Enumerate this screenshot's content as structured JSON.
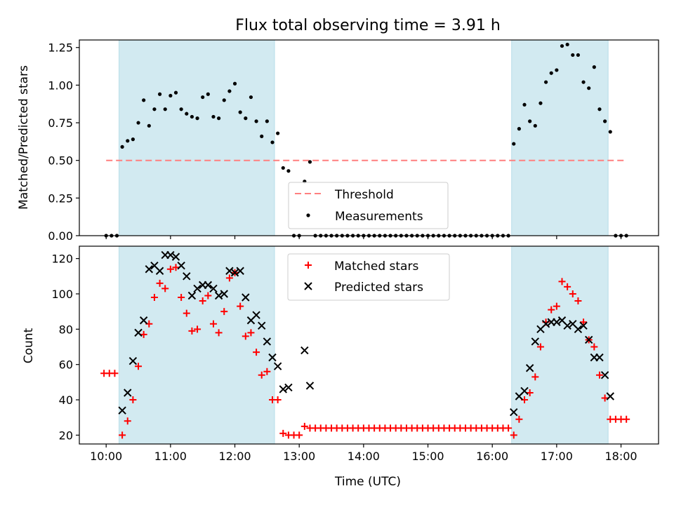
{
  "title": "Flux total observing time = 3.91 h",
  "colors": {
    "span": "#add8e6",
    "threshold": "#ff7f7f",
    "measurement": "#000000",
    "matched": "#ff0000",
    "predicted": "#000000"
  },
  "chart_data": [
    {
      "type": "scatter",
      "ylabel": "Matched/Predicted stars",
      "ylim": [
        0,
        1.3
      ],
      "yticks": [
        "0.00",
        "0.25",
        "0.50",
        "0.75",
        "1.00",
        "1.25"
      ],
      "grid": false,
      "legend_position": "lower center",
      "observing_windows": [
        [
          "10:12",
          "12:37"
        ],
        [
          "16:18",
          "17:48"
        ]
      ],
      "threshold": {
        "name": "Threshold",
        "value": 0.5,
        "x_range": [
          "10:00",
          "18:05"
        ]
      },
      "series": [
        {
          "name": "Measurements",
          "points": [
            [
              "10:00",
              0
            ],
            [
              "10:05",
              0
            ],
            [
              "10:10",
              0
            ],
            [
              "10:15",
              0.59
            ],
            [
              "10:20",
              0.63
            ],
            [
              "10:25",
              0.64
            ],
            [
              "10:30",
              0.75
            ],
            [
              "10:35",
              0.9
            ],
            [
              "10:40",
              0.73
            ],
            [
              "10:45",
              0.84
            ],
            [
              "10:50",
              0.94
            ],
            [
              "10:55",
              0.84
            ],
            [
              "11:00",
              0.93
            ],
            [
              "11:05",
              0.95
            ],
            [
              "11:10",
              0.84
            ],
            [
              "11:15",
              0.81
            ],
            [
              "11:20",
              0.79
            ],
            [
              "11:25",
              0.78
            ],
            [
              "11:30",
              0.92
            ],
            [
              "11:35",
              0.94
            ],
            [
              "11:40",
              0.79
            ],
            [
              "11:45",
              0.78
            ],
            [
              "11:50",
              0.9
            ],
            [
              "11:55",
              0.96
            ],
            [
              "12:00",
              1.01
            ],
            [
              "12:05",
              0.82
            ],
            [
              "12:10",
              0.78
            ],
            [
              "12:15",
              0.92
            ],
            [
              "12:20",
              0.76
            ],
            [
              "12:25",
              0.66
            ],
            [
              "12:30",
              0.76
            ],
            [
              "12:35",
              0.62
            ],
            [
              "12:40",
              0.68
            ],
            [
              "12:45",
              0.45
            ],
            [
              "12:50",
              0.43
            ],
            [
              "12:55",
              0
            ],
            [
              "13:00",
              0
            ],
            [
              "13:05",
              0.36
            ],
            [
              "13:10",
              0.49
            ],
            [
              "13:15",
              0
            ],
            [
              "13:20",
              0
            ],
            [
              "13:25",
              0
            ],
            [
              "13:30",
              0
            ],
            [
              "13:35",
              0
            ],
            [
              "13:40",
              0
            ],
            [
              "13:45",
              0
            ],
            [
              "13:50",
              0
            ],
            [
              "13:55",
              0
            ],
            [
              "14:00",
              0
            ],
            [
              "14:05",
              0
            ],
            [
              "14:10",
              0
            ],
            [
              "14:15",
              0
            ],
            [
              "14:20",
              0
            ],
            [
              "14:25",
              0
            ],
            [
              "14:30",
              0
            ],
            [
              "14:35",
              0
            ],
            [
              "14:40",
              0
            ],
            [
              "14:45",
              0
            ],
            [
              "14:50",
              0
            ],
            [
              "14:55",
              0
            ],
            [
              "15:00",
              0
            ],
            [
              "15:05",
              0
            ],
            [
              "15:10",
              0
            ],
            [
              "15:15",
              0
            ],
            [
              "15:20",
              0
            ],
            [
              "15:25",
              0
            ],
            [
              "15:30",
              0
            ],
            [
              "15:35",
              0
            ],
            [
              "15:40",
              0
            ],
            [
              "15:45",
              0
            ],
            [
              "15:50",
              0
            ],
            [
              "15:55",
              0
            ],
            [
              "16:00",
              0
            ],
            [
              "16:05",
              0
            ],
            [
              "16:10",
              0
            ],
            [
              "16:15",
              0
            ],
            [
              "16:20",
              0.61
            ],
            [
              "16:25",
              0.71
            ],
            [
              "16:30",
              0.87
            ],
            [
              "16:35",
              0.76
            ],
            [
              "16:40",
              0.73
            ],
            [
              "16:45",
              0.88
            ],
            [
              "16:50",
              1.02
            ],
            [
              "16:55",
              1.08
            ],
            [
              "17:00",
              1.1
            ],
            [
              "17:05",
              1.26
            ],
            [
              "17:10",
              1.27
            ],
            [
              "17:15",
              1.2
            ],
            [
              "17:20",
              1.2
            ],
            [
              "17:25",
              1.02
            ],
            [
              "17:30",
              0.98
            ],
            [
              "17:35",
              1.12
            ],
            [
              "17:40",
              0.84
            ],
            [
              "17:45",
              0.76
            ],
            [
              "17:50",
              0.69
            ],
            [
              "17:55",
              0
            ],
            [
              "18:00",
              0
            ],
            [
              "18:05",
              0
            ]
          ]
        }
      ]
    },
    {
      "type": "scatter",
      "xlabel": "Time (UTC)",
      "ylabel": "Count",
      "ylim": [
        15,
        127
      ],
      "xlim": [
        "9:35",
        "18:35"
      ],
      "yticks": [
        "20",
        "40",
        "60",
        "80",
        "100",
        "120"
      ],
      "xticks": [
        "10:00",
        "11:00",
        "12:00",
        "13:00",
        "14:00",
        "15:00",
        "16:00",
        "17:00",
        "18:00"
      ],
      "grid": false,
      "legend_position": "upper center",
      "observing_windows": [
        [
          "10:12",
          "12:37"
        ],
        [
          "16:18",
          "17:48"
        ]
      ],
      "series": [
        {
          "name": "Matched stars",
          "marker": "+",
          "points": [
            [
              "9:58",
              55
            ],
            [
              "10:03",
              55
            ],
            [
              "10:08",
              55
            ],
            [
              "10:15",
              20
            ],
            [
              "10:20",
              28
            ],
            [
              "10:25",
              40
            ],
            [
              "10:30",
              59
            ],
            [
              "10:35",
              77
            ],
            [
              "10:40",
              83
            ],
            [
              "10:45",
              98
            ],
            [
              "10:50",
              106
            ],
            [
              "10:55",
              103
            ],
            [
              "11:00",
              114
            ],
            [
              "11:05",
              115
            ],
            [
              "11:10",
              98
            ],
            [
              "11:15",
              89
            ],
            [
              "11:20",
              79
            ],
            [
              "11:25",
              80
            ],
            [
              "11:30",
              96
            ],
            [
              "11:35",
              99
            ],
            [
              "11:40",
              83
            ],
            [
              "11:45",
              78
            ],
            [
              "11:50",
              90
            ],
            [
              "11:55",
              109
            ],
            [
              "12:00",
              112
            ],
            [
              "12:05",
              93
            ],
            [
              "12:10",
              76
            ],
            [
              "12:15",
              78
            ],
            [
              "12:20",
              67
            ],
            [
              "12:25",
              54
            ],
            [
              "12:30",
              56
            ],
            [
              "12:35",
              40
            ],
            [
              "12:40",
              40
            ],
            [
              "12:45",
              21
            ],
            [
              "12:50",
              20
            ],
            [
              "12:55",
              20
            ],
            [
              "13:00",
              20
            ],
            [
              "13:05",
              25
            ],
            [
              "13:10",
              24
            ],
            [
              "13:15",
              24
            ],
            [
              "13:20",
              24
            ],
            [
              "13:25",
              24
            ],
            [
              "13:30",
              24
            ],
            [
              "13:35",
              24
            ],
            [
              "13:40",
              24
            ],
            [
              "13:45",
              24
            ],
            [
              "13:50",
              24
            ],
            [
              "13:55",
              24
            ],
            [
              "14:00",
              24
            ],
            [
              "14:05",
              24
            ],
            [
              "14:10",
              24
            ],
            [
              "14:15",
              24
            ],
            [
              "14:20",
              24
            ],
            [
              "14:25",
              24
            ],
            [
              "14:30",
              24
            ],
            [
              "14:35",
              24
            ],
            [
              "14:40",
              24
            ],
            [
              "14:45",
              24
            ],
            [
              "14:50",
              24
            ],
            [
              "14:55",
              24
            ],
            [
              "15:00",
              24
            ],
            [
              "15:05",
              24
            ],
            [
              "15:10",
              24
            ],
            [
              "15:15",
              24
            ],
            [
              "15:20",
              24
            ],
            [
              "15:25",
              24
            ],
            [
              "15:30",
              24
            ],
            [
              "15:35",
              24
            ],
            [
              "15:40",
              24
            ],
            [
              "15:45",
              24
            ],
            [
              "15:50",
              24
            ],
            [
              "15:55",
              24
            ],
            [
              "16:00",
              24
            ],
            [
              "16:05",
              24
            ],
            [
              "16:10",
              24
            ],
            [
              "16:15",
              24
            ],
            [
              "16:20",
              20
            ],
            [
              "16:25",
              29
            ],
            [
              "16:30",
              40
            ],
            [
              "16:35",
              44
            ],
            [
              "16:40",
              53
            ],
            [
              "16:45",
              70
            ],
            [
              "16:50",
              84
            ],
            [
              "16:55",
              91
            ],
            [
              "17:00",
              93
            ],
            [
              "17:05",
              107
            ],
            [
              "17:10",
              104
            ],
            [
              "17:15",
              100
            ],
            [
              "17:20",
              96
            ],
            [
              "17:25",
              84
            ],
            [
              "17:30",
              74
            ],
            [
              "17:35",
              70
            ],
            [
              "17:40",
              54
            ],
            [
              "17:45",
              41
            ],
            [
              "17:50",
              29
            ],
            [
              "17:55",
              29
            ],
            [
              "18:00",
              29
            ],
            [
              "18:05",
              29
            ]
          ]
        },
        {
          "name": "Predicted stars",
          "marker": "x",
          "points": [
            [
              "10:15",
              34
            ],
            [
              "10:20",
              44
            ],
            [
              "10:25",
              62
            ],
            [
              "10:30",
              78
            ],
            [
              "10:35",
              85
            ],
            [
              "10:40",
              114
            ],
            [
              "10:45",
              116
            ],
            [
              "10:50",
              113
            ],
            [
              "10:55",
              122
            ],
            [
              "11:00",
              122
            ],
            [
              "11:05",
              121
            ],
            [
              "11:10",
              116
            ],
            [
              "11:15",
              110
            ],
            [
              "11:20",
              99
            ],
            [
              "11:25",
              103
            ],
            [
              "11:30",
              105
            ],
            [
              "11:35",
              105
            ],
            [
              "11:40",
              103
            ],
            [
              "11:45",
              99
            ],
            [
              "11:50",
              100
            ],
            [
              "11:55",
              113
            ],
            [
              "12:00",
              112
            ],
            [
              "12:05",
              113
            ],
            [
              "12:10",
              98
            ],
            [
              "12:15",
              85
            ],
            [
              "12:20",
              88
            ],
            [
              "12:25",
              82
            ],
            [
              "12:30",
              73
            ],
            [
              "12:35",
              64
            ],
            [
              "12:40",
              59
            ],
            [
              "12:45",
              46
            ],
            [
              "12:50",
              47
            ],
            [
              "13:05",
              68
            ],
            [
              "13:10",
              48
            ],
            [
              "16:20",
              33
            ],
            [
              "16:25",
              42
            ],
            [
              "16:30",
              45
            ],
            [
              "16:35",
              58
            ],
            [
              "16:40",
              73
            ],
            [
              "16:45",
              80
            ],
            [
              "16:50",
              83
            ],
            [
              "16:55",
              84
            ],
            [
              "17:00",
              84
            ],
            [
              "17:05",
              85
            ],
            [
              "17:10",
              82
            ],
            [
              "17:15",
              83
            ],
            [
              "17:20",
              80
            ],
            [
              "17:25",
              82
            ],
            [
              "17:30",
              74
            ],
            [
              "17:35",
              64
            ],
            [
              "17:40",
              64
            ],
            [
              "17:45",
              54
            ],
            [
              "17:50",
              42
            ]
          ]
        }
      ]
    }
  ]
}
